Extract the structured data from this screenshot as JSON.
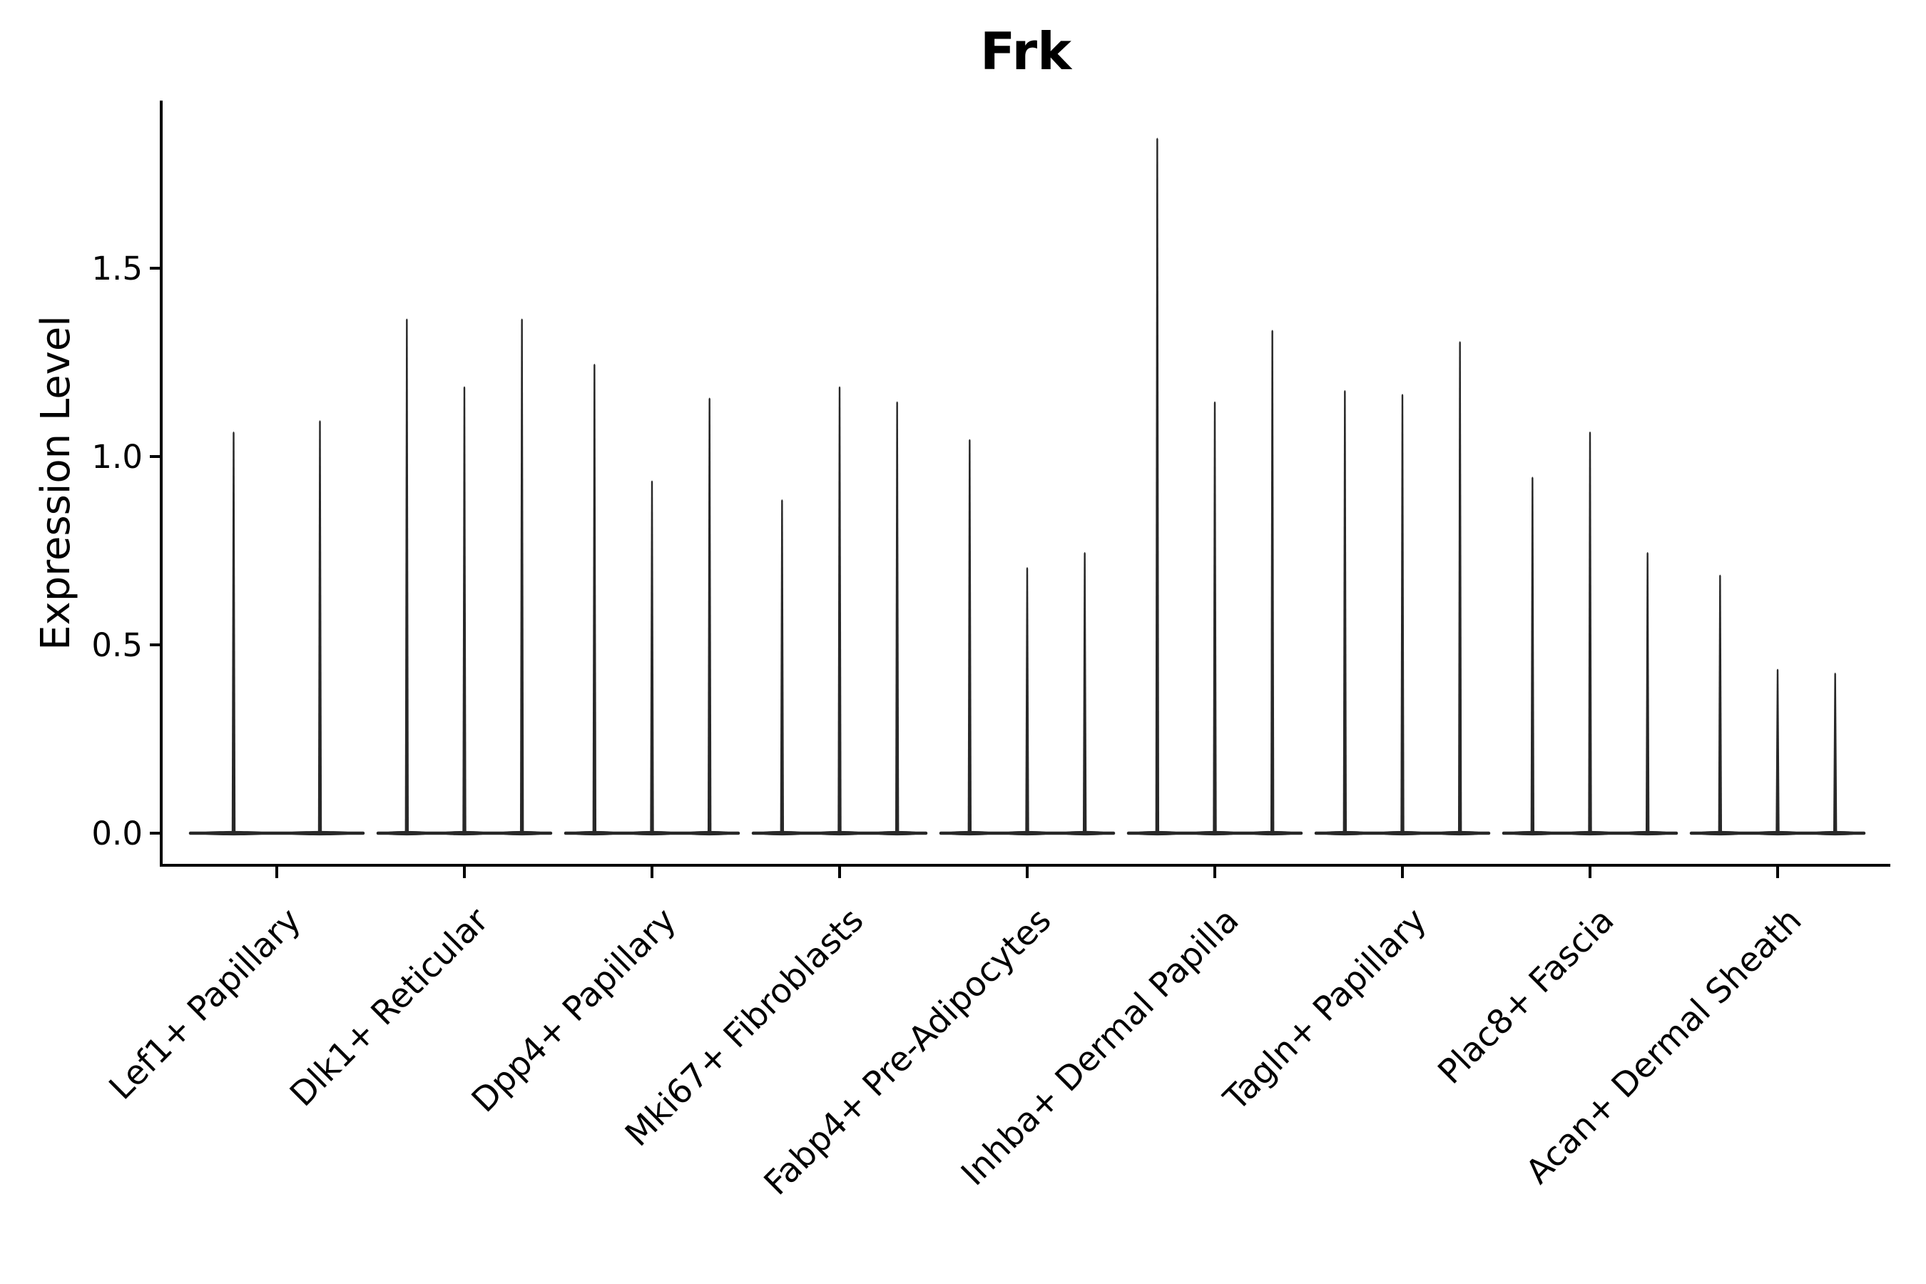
{
  "chart_data": {
    "type": "violin",
    "title": "Frk",
    "ylabel": "Expression Level",
    "xlabel": "",
    "ytick_labels": [
      "0.0",
      "0.5",
      "1.0",
      "1.5"
    ],
    "ytick_values": [
      0.0,
      0.5,
      1.0,
      1.5
    ],
    "ylim": [
      -0.09,
      1.94
    ],
    "grid": false,
    "legend": false,
    "categories": [
      "Lef1+ Papillary",
      "Dlk1+ Reticular",
      "Dpp4+ Papillary",
      "Mki67+ Fibroblasts",
      "Fabp4+ Pre-Adipocytes",
      "Inhba+ Dermal Papilla",
      "Tagln+ Papillary",
      "Plac8+ Fascia",
      "Acan+ Dermal Sheath"
    ],
    "violin_peaks_per_category": [
      [
        1.07,
        1.1
      ],
      [
        1.37,
        1.19,
        1.37
      ],
      [
        1.25,
        0.94,
        1.16
      ],
      [
        0.89,
        1.19,
        1.15
      ],
      [
        1.05,
        0.71,
        0.75
      ],
      [
        1.85,
        1.15,
        1.34
      ],
      [
        1.18,
        1.17,
        1.31
      ],
      [
        0.95,
        1.07,
        0.75
      ],
      [
        0.69,
        0.44,
        0.43
      ]
    ],
    "note": "Violin plot of Frk expression; every violin collapses to a thin spike (most cells at 0) with a wide flat base at 0. Values are the maximum expression level each spike reaches.",
    "colors": {
      "axis": "#000000",
      "violin": "#282828",
      "background": "#ffffff"
    }
  }
}
